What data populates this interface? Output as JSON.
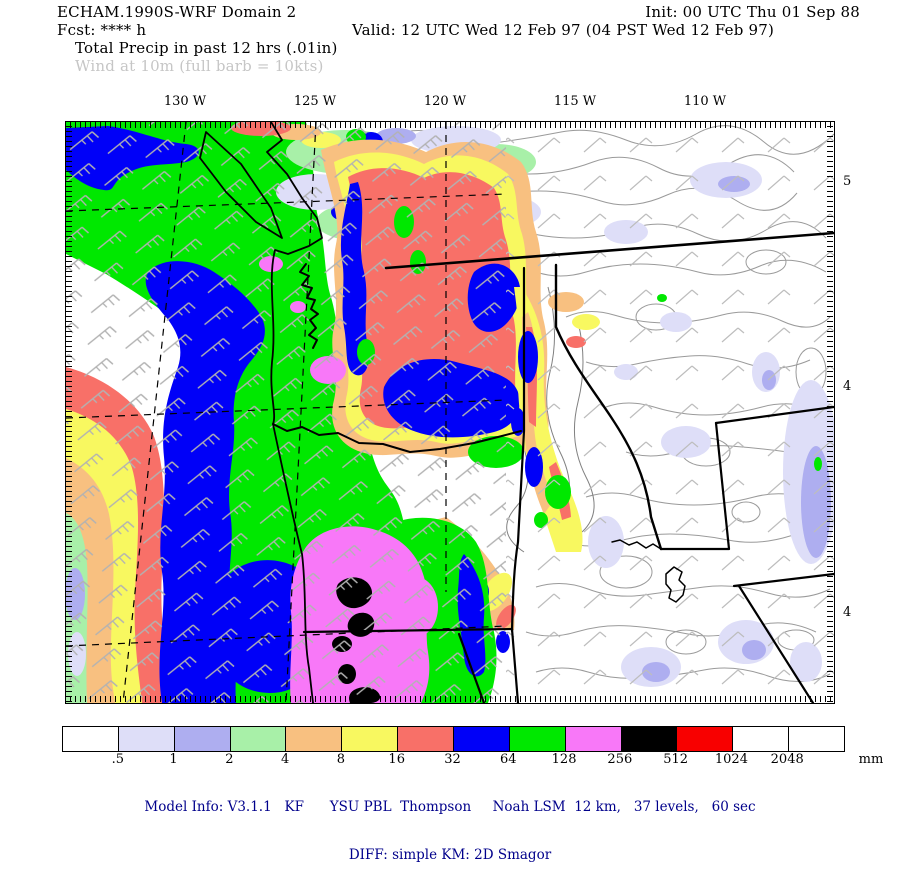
{
  "header": {
    "model_title": "ECHAM.1990S-WRF Domain 2",
    "init_label": "Init: 00 UTC Thu 01 Sep 88",
    "fcst_label": "Fcst: **** h",
    "valid_label": "Valid: 12 UTC Wed 12 Feb 97 (04 PST Wed 12 Feb 97)",
    "field_label": "Total Precip in past 12 hrs (.01in)",
    "wind_label": "Wind at 10m (full barb = 10kts)"
  },
  "map": {
    "lon_labels": [
      "130 W",
      "125 W",
      "120 W",
      "115 W",
      "110 W"
    ],
    "lat_labels": [
      "5",
      "4",
      "4"
    ]
  },
  "colorbar": {
    "unit": "mm",
    "tick_labels": [
      ".5",
      "1",
      "2",
      "4",
      "8",
      "16",
      "32",
      "64",
      "128",
      "256",
      "512",
      "1024",
      "2048"
    ],
    "colors": [
      "#FFFFFF",
      "#DEDEF8",
      "#AEAEF0",
      "#A8F0A8",
      "#F8C080",
      "#F8F860",
      "#F87068",
      "#0000F8",
      "#00E800",
      "#F878F8",
      "#000000",
      "#F80000",
      "#FFFFFF",
      "#FFFFFF"
    ]
  },
  "footer": {
    "model_info": "Model Info: V3.1.1   KF      YSU PBL  Thompson     Noah LSM  12 km,   37 levels,   60 sec",
    "diff_info": "DIFF: simple KM: 2D Smagor",
    "text_color": "#00008B"
  }
}
